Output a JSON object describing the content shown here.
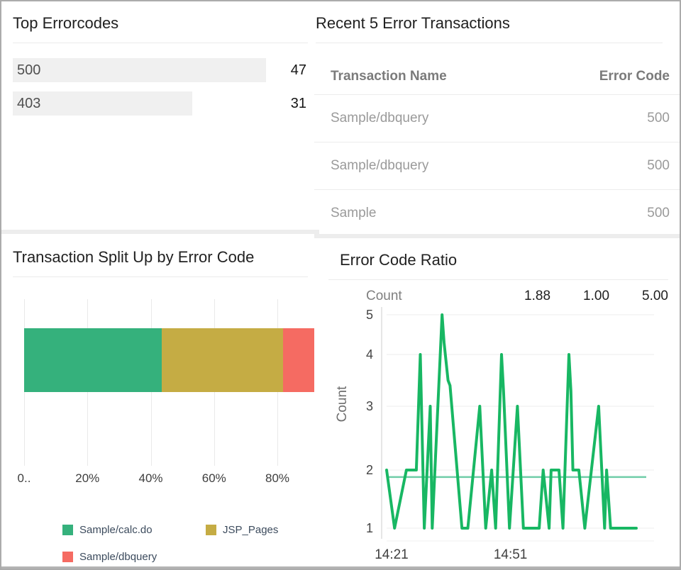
{
  "panels": {
    "top_errorcodes": {
      "title": "Top Errorcodes",
      "rows": [
        {
          "label": "500",
          "value": "47"
        },
        {
          "label": "403",
          "value": "31"
        }
      ]
    },
    "recent_transactions": {
      "title": "Recent 5 Error Transactions",
      "columns": [
        "Transaction Name",
        "Error Code"
      ],
      "rows": [
        {
          "name": "Sample/dbquery",
          "code": "500"
        },
        {
          "name": "Sample/dbquery",
          "code": "500"
        },
        {
          "name": "Sample",
          "code": "500"
        }
      ]
    },
    "transaction_split": {
      "title": "Transaction Split Up by Error Code"
    },
    "error_code_ratio": {
      "title": "Error Code Ratio",
      "stats_label": "Count",
      "stats_values": [
        "1.88",
        "1.00",
        "5.00"
      ]
    }
  },
  "chart_data": [
    {
      "type": "bar",
      "variant": "horizontal-stacked",
      "title": "Transaction Split Up by Error Code",
      "xlabel": "",
      "ylabel": "",
      "xlim": [
        0,
        100
      ],
      "x_ticks": [
        {
          "pct": 0,
          "label": "0.."
        },
        {
          "pct": 20,
          "label": "20%"
        },
        {
          "pct": 40,
          "label": "40%"
        },
        {
          "pct": 60,
          "label": "60%"
        },
        {
          "pct": 80,
          "label": "80%"
        }
      ],
      "series": [
        {
          "name": "Sample/calc.do",
          "value_pct": 43.5,
          "color": "#35b17c"
        },
        {
          "name": "JSP_Pages",
          "value_pct": 38.3,
          "color": "#c5ac44"
        },
        {
          "name": "Sample/dbquery",
          "value_pct": 11.5,
          "color": "#f56b62"
        }
      ],
      "legend_position": "bottom",
      "grid": true
    },
    {
      "type": "line",
      "title": "Error Code Ratio",
      "ylabel": "Count",
      "ylim": [
        1,
        5
      ],
      "y_ticks": [
        1,
        2,
        3,
        4,
        5
      ],
      "x_ticks": [
        {
          "t": 1.25,
          "label": "14:21"
        },
        {
          "t": 31.25,
          "label": "14:51"
        }
      ],
      "t_max": 63,
      "average_line": 1.88,
      "stats": {
        "label": "Count",
        "avg": "1.88",
        "min": "1.00",
        "max": "5.00"
      },
      "line_color": "#18b763",
      "average_color": "#6fcda8",
      "grid": true,
      "points": [
        [
          0,
          2
        ],
        [
          2,
          1
        ],
        [
          5,
          2
        ],
        [
          7.5,
          2
        ],
        [
          8.5,
          4
        ],
        [
          9.5,
          1
        ],
        [
          11,
          3
        ],
        [
          11.5,
          1
        ],
        [
          14,
          5
        ],
        [
          14.5,
          4.3
        ],
        [
          15.5,
          3.5
        ],
        [
          16,
          3.4
        ],
        [
          19,
          1
        ],
        [
          20.5,
          1
        ],
        [
          23.5,
          3
        ],
        [
          25,
          1
        ],
        [
          26.5,
          2
        ],
        [
          27.5,
          1
        ],
        [
          29,
          4
        ],
        [
          29.5,
          3.3
        ],
        [
          31,
          1
        ],
        [
          33,
          3
        ],
        [
          34.5,
          1
        ],
        [
          38.5,
          1
        ],
        [
          39.5,
          2
        ],
        [
          41,
          1
        ],
        [
          41.5,
          2
        ],
        [
          43.5,
          2
        ],
        [
          44.5,
          1
        ],
        [
          46,
          4
        ],
        [
          46.5,
          3.3
        ],
        [
          47,
          2
        ],
        [
          48.5,
          2
        ],
        [
          50,
          1
        ],
        [
          53.5,
          3
        ],
        [
          55,
          1
        ],
        [
          55.5,
          2
        ],
        [
          56.5,
          1
        ],
        [
          63,
          1
        ]
      ]
    }
  ],
  "colors": {
    "panel_bg": "#ffffff",
    "page_border": "#ababab",
    "divider": "#ededed",
    "rule": "#ebebeb",
    "bar_track": "#f0f0f0",
    "title_text": "#212121",
    "table_header_text": "#7b7b7b",
    "table_cell_text": "#9a9a9a",
    "axis_text": "#3e3e3e",
    "legend_text": "#3c4b5d",
    "grid_line": "#e9e9e9",
    "series_green": "#35b17c",
    "series_khaki": "#c5ac44",
    "series_red": "#f56b62",
    "line_green": "#18b763",
    "average_teal": "#6fcda8"
  }
}
